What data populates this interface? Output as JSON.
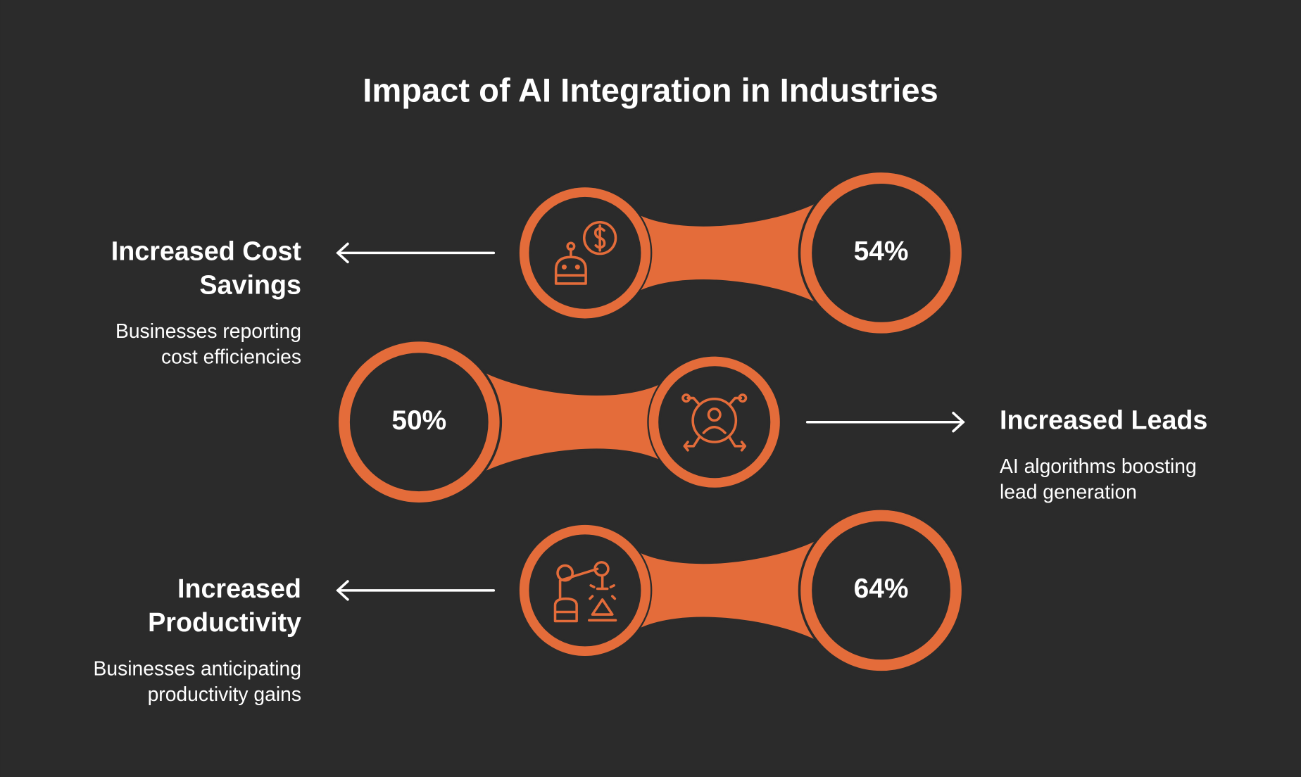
{
  "title": "Impact of AI Integration in Industries",
  "items": [
    {
      "title": [
        "Increased Cost",
        "Savings"
      ],
      "description": [
        "Businesses reporting",
        "cost efficiencies"
      ],
      "value": "54%"
    },
    {
      "title": [
        "Increased Leads"
      ],
      "description": [
        "AI algorithms boosting",
        "lead generation"
      ],
      "value": "50%"
    },
    {
      "title": [
        "Increased",
        "Productivity"
      ],
      "description": [
        "Businesses anticipating",
        "productivity gains"
      ],
      "value": "64%"
    }
  ]
}
